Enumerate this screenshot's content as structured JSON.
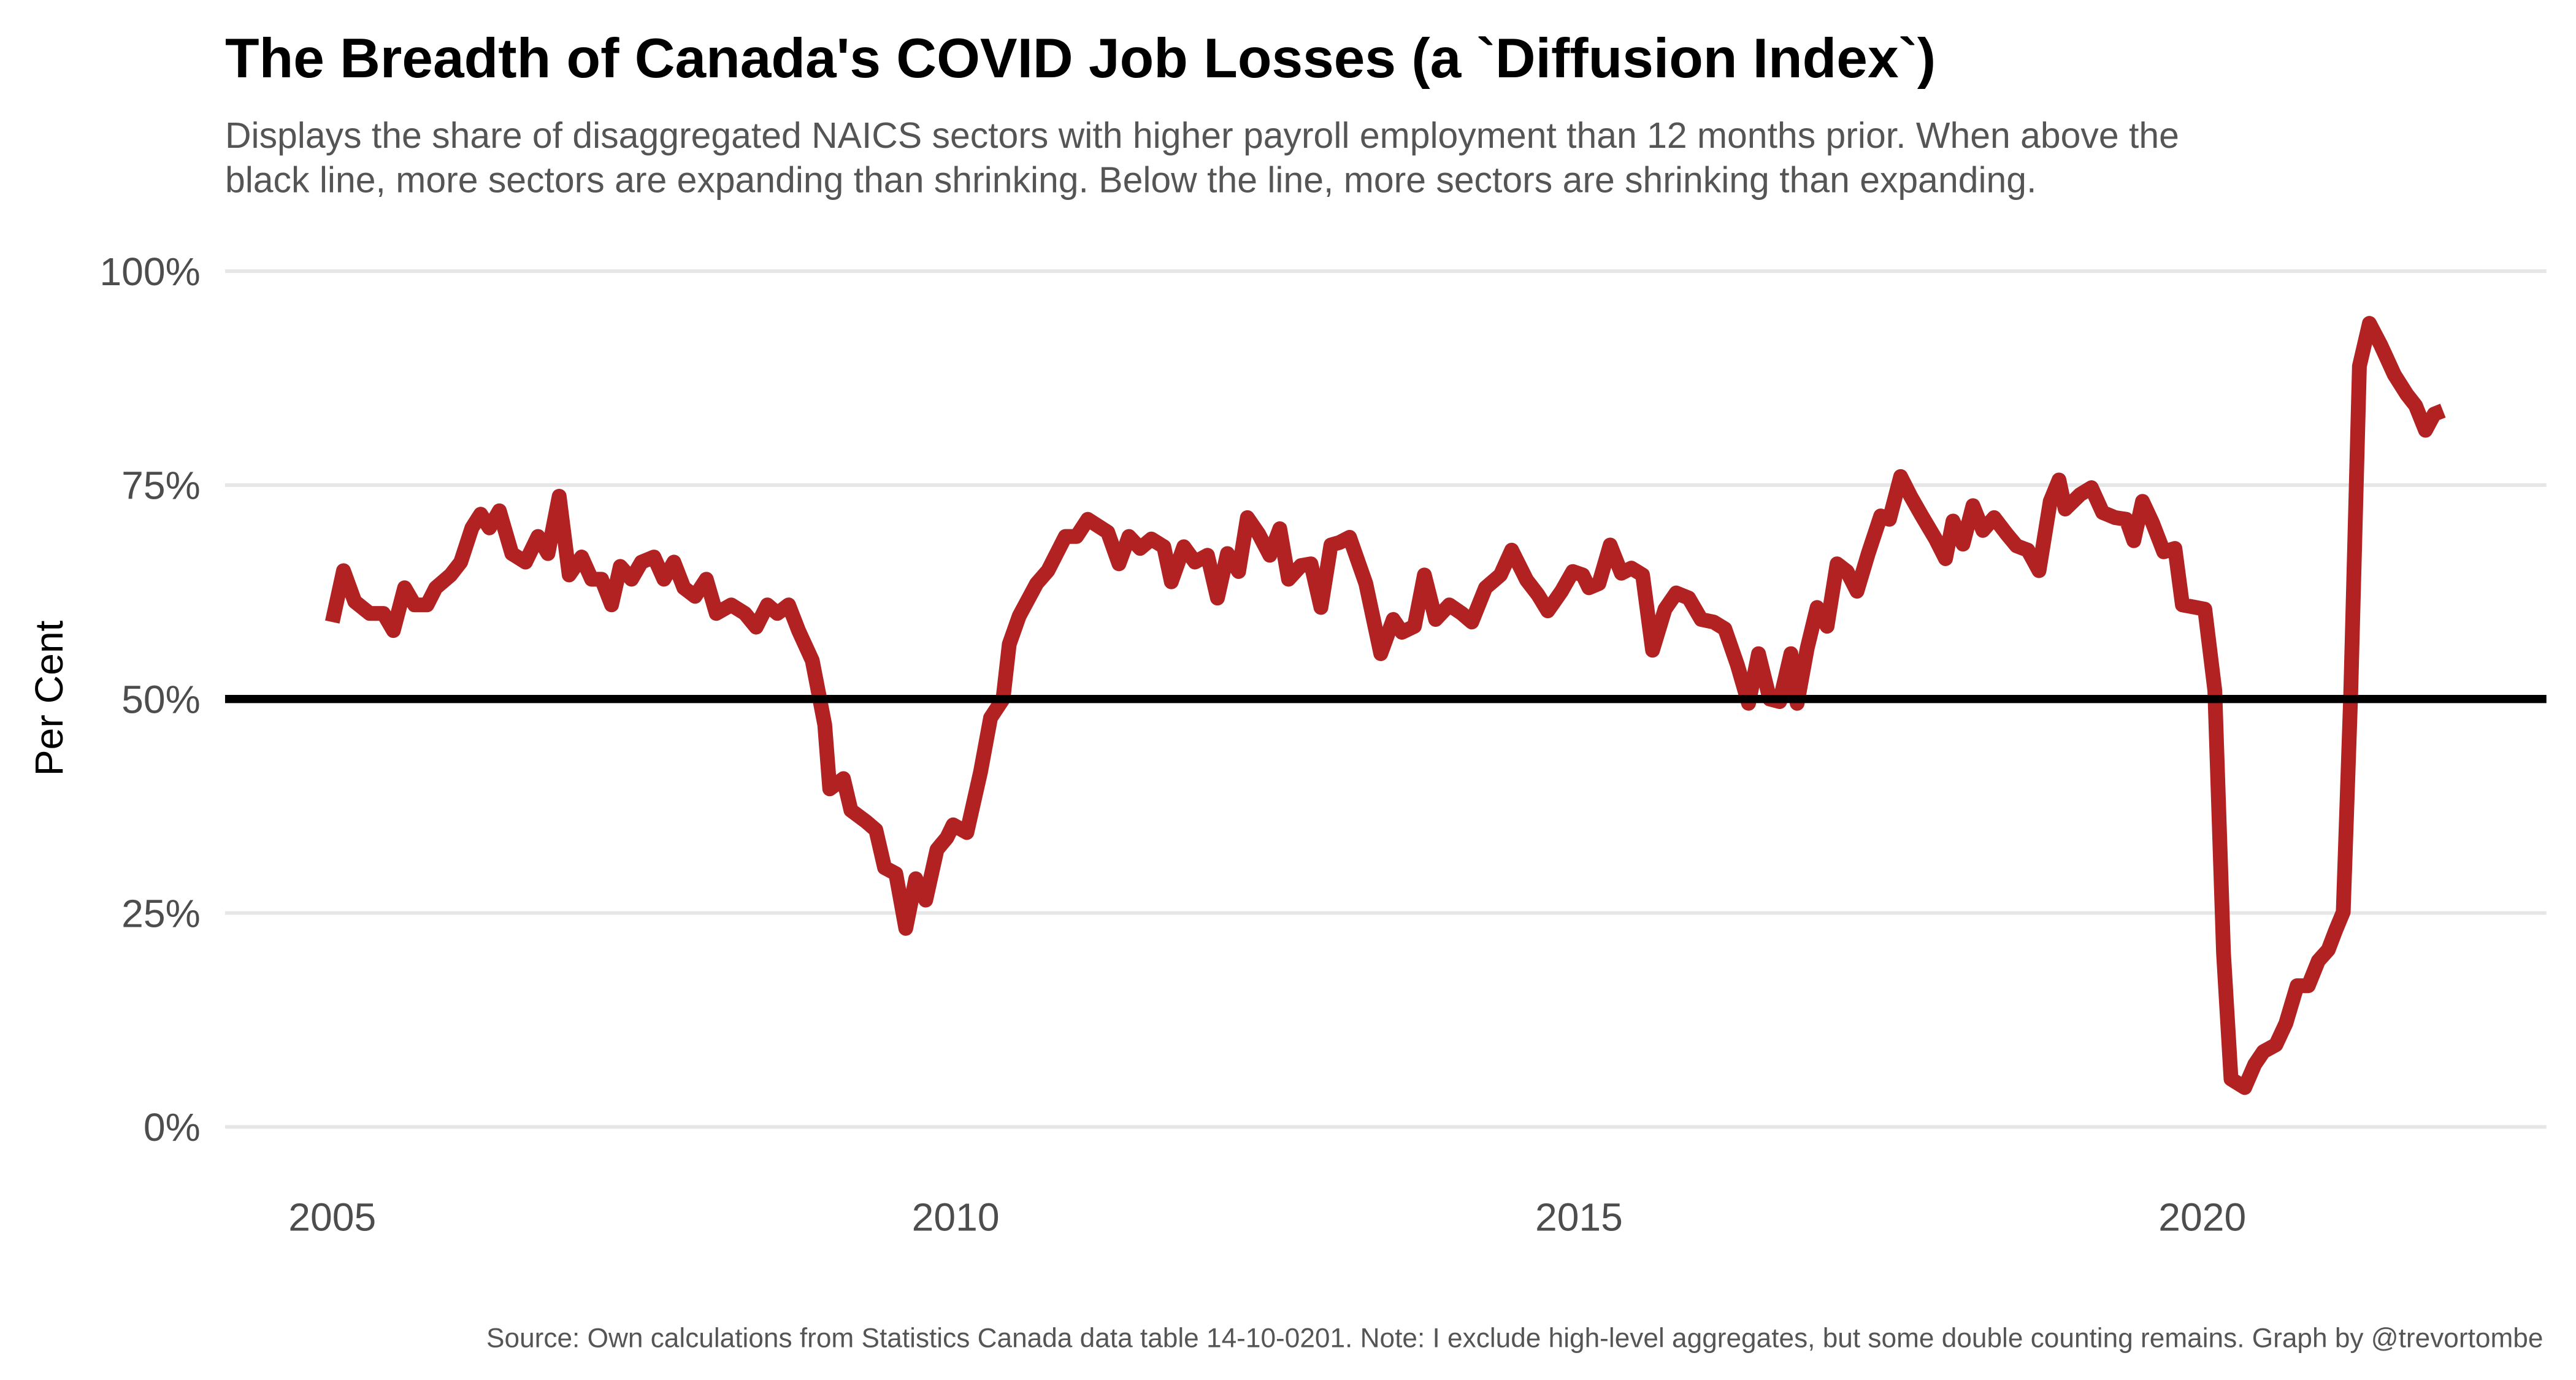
{
  "chart_data": {
    "type": "line",
    "title": "The Breadth of Canada's COVID Job Losses (a `Diffusion Index`)",
    "subtitle": [
      "Displays the share of disaggregated NAICS sectors with higher payroll employment than 12 months prior. When above the",
      "black line, more sectors are expanding than shrinking. Below the line, more sectors are shrinking than expanding."
    ],
    "y_label": "Per Cent",
    "caption": "Source: Own calculations from Statistics Canada data table 14-10-0201. Note: I exclude high-level aggregates, but some double counting remains. Graph by @trevortombe",
    "color": "#b22222",
    "grid": true,
    "reference_line": {
      "value": 50,
      "color": "#000000"
    },
    "xlim": [
      2004.14,
      2022.76
    ],
    "xticks": [
      2005,
      2010,
      2015,
      2020
    ],
    "ylim": [
      -5,
      105
    ],
    "yticks": [
      {
        "value": 0,
        "label": "0%"
      },
      {
        "value": 25,
        "label": "25%"
      },
      {
        "value": 50,
        "label": "50%"
      },
      {
        "value": 75,
        "label": "75%"
      },
      {
        "value": 100,
        "label": "100%"
      }
    ],
    "x": [
      2005.0,
      2005.09,
      2005.18,
      2005.3,
      2005.41,
      2005.49,
      2005.58,
      2005.66,
      2005.76,
      2005.83,
      2005.95,
      2006.03,
      2006.12,
      2006.19,
      2006.26,
      2006.34,
      2006.44,
      2006.55,
      2006.65,
      2006.73,
      2006.82,
      2006.9,
      2007.0,
      2007.08,
      2007.16,
      2007.24,
      2007.31,
      2007.4,
      2007.48,
      2007.58,
      2007.66,
      2007.74,
      2007.82,
      2007.91,
      2008.0,
      2008.08,
      2008.2,
      2008.31,
      2008.4,
      2008.49,
      2008.57,
      2008.66,
      2008.74,
      2008.85,
      2008.95,
      2008.99,
      2009.1,
      2009.16,
      2009.28,
      2009.36,
      2009.43,
      2009.52,
      2009.6,
      2009.68,
      2009.76,
      2009.85,
      2009.93,
      2009.98,
      2010.09,
      2010.2,
      2010.28,
      2010.38,
      2010.43,
      2010.51,
      2010.65,
      2010.74,
      2010.88,
      2010.97,
      2011.06,
      2011.22,
      2011.31,
      2011.39,
      2011.48,
      2011.57,
      2011.67,
      2011.73,
      2011.83,
      2011.92,
      2012.02,
      2012.1,
      2012.18,
      2012.27,
      2012.34,
      2012.43,
      2012.52,
      2012.6,
      2012.67,
      2012.77,
      2012.85,
      2012.93,
      2013.01,
      2013.08,
      2013.16,
      2013.29,
      2013.41,
      2013.51,
      2013.58,
      2013.68,
      2013.76,
      2013.85,
      2013.96,
      2014.06,
      2014.14,
      2014.25,
      2014.37,
      2014.46,
      2014.58,
      2014.67,
      2014.75,
      2014.86,
      2014.95,
      2015.03,
      2015.08,
      2015.16,
      2015.25,
      2015.34,
      2015.42,
      2015.51,
      2015.59,
      2015.69,
      2015.78,
      2015.88,
      2015.98,
      2016.08,
      2016.17,
      2016.27,
      2016.36,
      2016.44,
      2016.53,
      2016.61,
      2016.7,
      2016.75,
      2016.83,
      2016.91,
      2016.99,
      2017.07,
      2017.15,
      2017.23,
      2017.32,
      2017.42,
      2017.49,
      2017.58,
      2017.66,
      2017.75,
      2017.86,
      2017.94,
      2018.0,
      2018.08,
      2018.16,
      2018.24,
      2018.33,
      2018.43,
      2018.51,
      2018.6,
      2018.69,
      2018.78,
      2018.85,
      2018.9,
      2019.02,
      2019.11,
      2019.2,
      2019.3,
      2019.39,
      2019.45,
      2019.52,
      2019.6,
      2019.69,
      2019.78,
      2019.84,
      2019.95,
      2020.02,
      2020.1,
      2020.17,
      2020.23,
      2020.34,
      2020.42,
      2020.49,
      2020.59,
      2020.67,
      2020.76,
      2020.85,
      2020.93,
      2021.01,
      2021.07,
      2021.13,
      2021.19,
      2021.26,
      2021.34,
      2021.43,
      2021.54,
      2021.64,
      2021.71,
      2021.79,
      2021.86,
      2021.93
    ],
    "values": [
      59,
      65,
      61.4,
      60,
      60,
      58,
      63,
      61,
      61,
      63,
      64.5,
      66,
      70,
      71.6,
      70,
      72,
      67,
      66,
      69,
      67,
      73.7,
      64.5,
      66.6,
      64,
      64,
      61,
      65.5,
      64,
      66,
      66.6,
      64,
      66,
      63,
      62,
      64,
      60,
      61,
      60,
      58.4,
      61,
      60,
      61,
      58,
      54.5,
      47,
      39.5,
      40.7,
      37,
      35.7,
      34.7,
      30.3,
      29.6,
      23.2,
      29,
      26.5,
      32.4,
      33.8,
      35.3,
      34.4,
      41.5,
      47.8,
      50,
      56.4,
      59.7,
      63.5,
      65,
      69,
      69,
      71,
      69.5,
      65.8,
      69,
      67.6,
      68.7,
      67.8,
      63.7,
      67.8,
      66,
      66.8,
      61.8,
      67,
      64.9,
      71.2,
      69.3,
      66.8,
      69.9,
      64,
      65.6,
      65.8,
      60.7,
      68,
      68.3,
      68.9,
      63.5,
      55.3,
      59.3,
      57.8,
      58.5,
      64.5,
      59.3,
      61,
      60,
      59,
      63,
      64.5,
      67.4,
      63.9,
      62.2,
      60.3,
      62.6,
      64.9,
      64.5,
      63,
      63.5,
      68,
      64.7,
      65.3,
      64.5,
      55.7,
      60.5,
      62.4,
      61.8,
      59.3,
      59,
      58.2,
      54,
      49.5,
      55.3,
      50,
      49.7,
      55.3,
      49.5,
      55.9,
      60.7,
      58.5,
      65.8,
      64.9,
      62.6,
      67,
      71.4,
      71,
      76,
      73.7,
      71.4,
      68.7,
      66.4,
      70.8,
      68.1,
      72.6,
      69.7,
      71.2,
      69.3,
      67.9,
      67.4,
      65,
      73.1,
      75.6,
      72.2,
      73.9,
      74.7,
      71.8,
      71.2,
      71,
      68.5,
      73.1,
      70.6,
      67.2,
      67.6,
      61,
      60.7,
      60.5,
      51,
      20.3,
      5.6,
      4.6,
      7.3,
      8.8,
      9.6,
      12.1,
      16.5,
      16.5,
      19.4,
      20.7,
      23,
      25.1,
      50.5,
      88.9,
      93.9,
      91.4,
      87.9,
      85.6,
      84.3,
      81.4,
      83.3,
      83.7
    ]
  }
}
